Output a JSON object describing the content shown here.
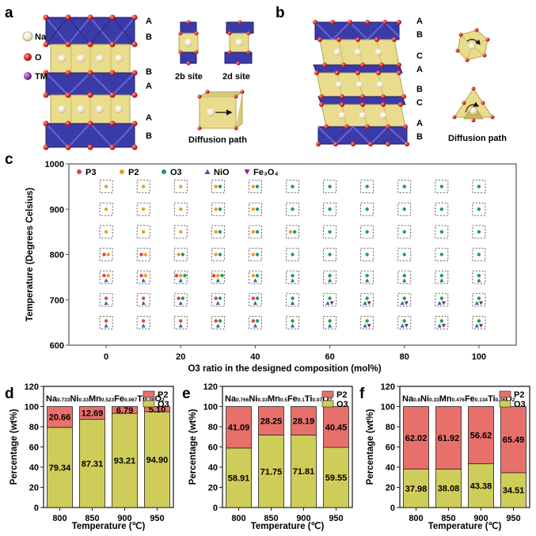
{
  "panels": {
    "a": {
      "label": "a",
      "legend": [
        "Na",
        "O",
        "TM"
      ],
      "layers": [
        "A",
        "B",
        "B",
        "A",
        "A",
        "B"
      ],
      "sites": [
        "2b site",
        "2d site"
      ],
      "diffusion": "Diffusion path"
    },
    "b": {
      "label": "b",
      "layers": [
        "A",
        "B",
        "C",
        "A",
        "B",
        "C",
        "A",
        "B"
      ],
      "diffusion": "Diffusion path"
    },
    "c": {
      "label": "c"
    },
    "d": {
      "label": "d"
    },
    "e": {
      "label": "e"
    },
    "f": {
      "label": "f"
    }
  },
  "colors": {
    "P3": "#e0443c",
    "P2": "#e8a020",
    "O3": "#1e9e52",
    "NiO": "#2a6aaa",
    "Fe3O4": "#7a2e8e",
    "bar_P2": "#e8706a",
    "bar_O3": "#cfcd5a",
    "TM_poly": "#3b3ba8"
  },
  "chart_data": [
    {
      "type": "scatter",
      "title": "",
      "xlabel": "O3 ratio in the designed composition  (mol%)",
      "ylabel": "Temperature (Degrees Celsius)",
      "xlim": [
        -10,
        110
      ],
      "ylim": [
        600,
        1000
      ],
      "xticks": [
        0,
        20,
        40,
        60,
        80,
        100
      ],
      "yticks": [
        600,
        700,
        800,
        900,
        1000
      ],
      "legend": [
        "P3",
        "P2",
        "O3",
        "NiO",
        "Fe₃O₄"
      ],
      "x": [
        0,
        10,
        20,
        30,
        40,
        50,
        60,
        70,
        80,
        90,
        100
      ],
      "temperatures": [
        650,
        700,
        750,
        800,
        850,
        900,
        950
      ],
      "phases_by_temperature": {
        "950": [
          [
            "P2"
          ],
          [
            "P2"
          ],
          [
            "P2"
          ],
          [
            "P2",
            "O3"
          ],
          [
            "P2",
            "O3"
          ],
          [
            "O3"
          ],
          [
            "O3"
          ],
          [
            "O3"
          ],
          [
            "O3"
          ],
          [
            "O3"
          ],
          [
            "O3"
          ]
        ],
        "900": [
          [
            "P2"
          ],
          [
            "P2"
          ],
          [
            "P2"
          ],
          [
            "P2",
            "O3"
          ],
          [
            "P2",
            "O3"
          ],
          [
            "O3"
          ],
          [
            "O3"
          ],
          [
            "O3"
          ],
          [
            "O3"
          ],
          [
            "O3"
          ],
          [
            "O3"
          ]
        ],
        "850": [
          [
            "P2"
          ],
          [
            "P2"
          ],
          [
            "P2"
          ],
          [
            "P2",
            "O3"
          ],
          [
            "P2",
            "O3"
          ],
          [
            "P2",
            "O3"
          ],
          [
            "O3"
          ],
          [
            "O3"
          ],
          [
            "O3"
          ],
          [
            "O3"
          ],
          [
            "O3"
          ]
        ],
        "800": [
          [
            "P3",
            "P2"
          ],
          [
            "P3",
            "P2"
          ],
          [
            "P2",
            "O3"
          ],
          [
            "P2",
            "O3"
          ],
          [
            "P2",
            "O3"
          ],
          [
            "O3"
          ],
          [
            "O3"
          ],
          [
            "O3"
          ],
          [
            "O3"
          ],
          [
            "O3"
          ],
          [
            "O3"
          ]
        ],
        "750": [
          [
            "P3",
            "P2",
            "NiO"
          ],
          [
            "P3",
            "P2",
            "NiO"
          ],
          [
            "P3",
            "P2",
            "O3",
            "NiO"
          ],
          [
            "P3",
            "P2",
            "O3",
            "NiO"
          ],
          [
            "P2",
            "O3",
            "NiO"
          ],
          [
            "O3",
            "NiO"
          ],
          [
            "O3",
            "NiO"
          ],
          [
            "O3",
            "NiO"
          ],
          [
            "O3",
            "NiO"
          ],
          [
            "O3",
            "NiO"
          ],
          [
            "O3",
            "NiO"
          ]
        ],
        "700": [
          [
            "P3",
            "NiO"
          ],
          [
            "P3",
            "NiO"
          ],
          [
            "P3",
            "O3",
            "NiO"
          ],
          [
            "P3",
            "O3",
            "NiO"
          ],
          [
            "P3",
            "O3",
            "NiO"
          ],
          [
            "O3",
            "NiO"
          ],
          [
            "O3",
            "NiO",
            "Fe3O4"
          ],
          [
            "O3",
            "NiO",
            "Fe3O4"
          ],
          [
            "O3",
            "NiO",
            "Fe3O4"
          ],
          [
            "O3",
            "NiO",
            "Fe3O4"
          ],
          [
            "O3",
            "NiO",
            "Fe3O4"
          ]
        ],
        "650": [
          [
            "P3",
            "NiO"
          ],
          [
            "P3",
            "NiO"
          ],
          [
            "P3",
            "NiO"
          ],
          [
            "P3",
            "O3",
            "NiO"
          ],
          [
            "P3",
            "O3",
            "NiO"
          ],
          [
            "O3",
            "NiO"
          ],
          [
            "O3",
            "NiO"
          ],
          [
            "O3",
            "NiO",
            "Fe3O4"
          ],
          [
            "O3",
            "NiO",
            "Fe3O4"
          ],
          [
            "O3",
            "NiO",
            "Fe3O4"
          ],
          [
            "O3",
            "NiO",
            "Fe3O4"
          ]
        ]
      }
    },
    {
      "type": "bar",
      "stacked": true,
      "panel": "d",
      "composition": "Na0.733Ni0.33Mn0.523Fe0.067Ti0.08O2",
      "composition_parts": [
        [
          "Na",
          "0.733"
        ],
        [
          "Ni",
          "0.33"
        ],
        [
          "Mn",
          "0.523"
        ],
        [
          "Fe",
          "0.067"
        ],
        [
          "Ti",
          "0.08"
        ],
        [
          "O",
          "2"
        ]
      ],
      "categories": [
        "800",
        "850",
        "900",
        "950"
      ],
      "series": [
        {
          "name": "O3",
          "values": [
            79.34,
            87.31,
            93.21,
            94.9
          ]
        },
        {
          "name": "P2",
          "values": [
            20.66,
            12.69,
            6.79,
            5.1
          ]
        }
      ],
      "labels": {
        "O3": [
          "79.34",
          "87.31",
          "93.21",
          "94.90"
        ],
        "P2": [
          "20.66",
          "12.69",
          "6.79",
          "5.10"
        ]
      },
      "xlabel": "Temperature (℃)",
      "ylabel": "Percentage (wt%)",
      "ylim": [
        0,
        120
      ],
      "yticks": [
        0,
        20,
        40,
        60,
        80,
        100,
        120
      ],
      "legend": [
        "P2",
        "O3"
      ]
    },
    {
      "type": "bar",
      "stacked": true,
      "panel": "e",
      "composition": "Na0.766Ni0.33Mn0.5Fe0.1Ti0.07O2",
      "composition_parts": [
        [
          "Na",
          "0.766"
        ],
        [
          "Ni",
          "0.33"
        ],
        [
          "Mn",
          "0.5"
        ],
        [
          "Fe",
          "0.1"
        ],
        [
          "Ti",
          "0.07"
        ],
        [
          "O",
          "2"
        ]
      ],
      "categories": [
        "800",
        "850",
        "900",
        "950"
      ],
      "series": [
        {
          "name": "O3",
          "values": [
            58.91,
            71.75,
            71.81,
            59.55
          ]
        },
        {
          "name": "P2",
          "values": [
            41.09,
            28.25,
            28.19,
            40.45
          ]
        }
      ],
      "labels": {
        "O3": [
          "58.91",
          "71.75",
          "71.81",
          "59.55"
        ],
        "P2": [
          "41.09",
          "28.25",
          "28.19",
          "40.45"
        ]
      },
      "xlabel": "Temperature (℃)",
      "ylabel": "Percentage (wt%)",
      "ylim": [
        0,
        120
      ],
      "yticks": [
        0,
        20,
        40,
        60,
        80,
        100,
        120
      ],
      "legend": [
        "P2",
        "O3"
      ]
    },
    {
      "type": "bar",
      "stacked": true,
      "panel": "f",
      "composition": "Na0.8Ni0.33Mn0.476Fe0.134Ti0.06O2",
      "composition_parts": [
        [
          "Na",
          "0.8"
        ],
        [
          "Ni",
          "0.33"
        ],
        [
          "Mn",
          "0.476"
        ],
        [
          "Fe",
          "0.134"
        ],
        [
          "Ti",
          "0.06"
        ],
        [
          "O",
          "2"
        ]
      ],
      "categories": [
        "800",
        "850",
        "900",
        "950"
      ],
      "series": [
        {
          "name": "O3",
          "values": [
            37.98,
            38.08,
            43.38,
            34.51
          ]
        },
        {
          "name": "P2",
          "values": [
            62.02,
            61.92,
            56.62,
            65.49
          ]
        }
      ],
      "labels": {
        "O3": [
          "37.98",
          "38.08",
          "43.38",
          "34.51"
        ],
        "P2": [
          "62.02",
          "61.92",
          "56.62",
          "65.49"
        ]
      },
      "xlabel": "Temperature (℃)",
      "ylabel": "Percentage (wt%)",
      "ylim": [
        0,
        120
      ],
      "yticks": [
        0,
        20,
        40,
        60,
        80,
        100,
        120
      ],
      "legend": [
        "P2",
        "O3"
      ]
    }
  ]
}
